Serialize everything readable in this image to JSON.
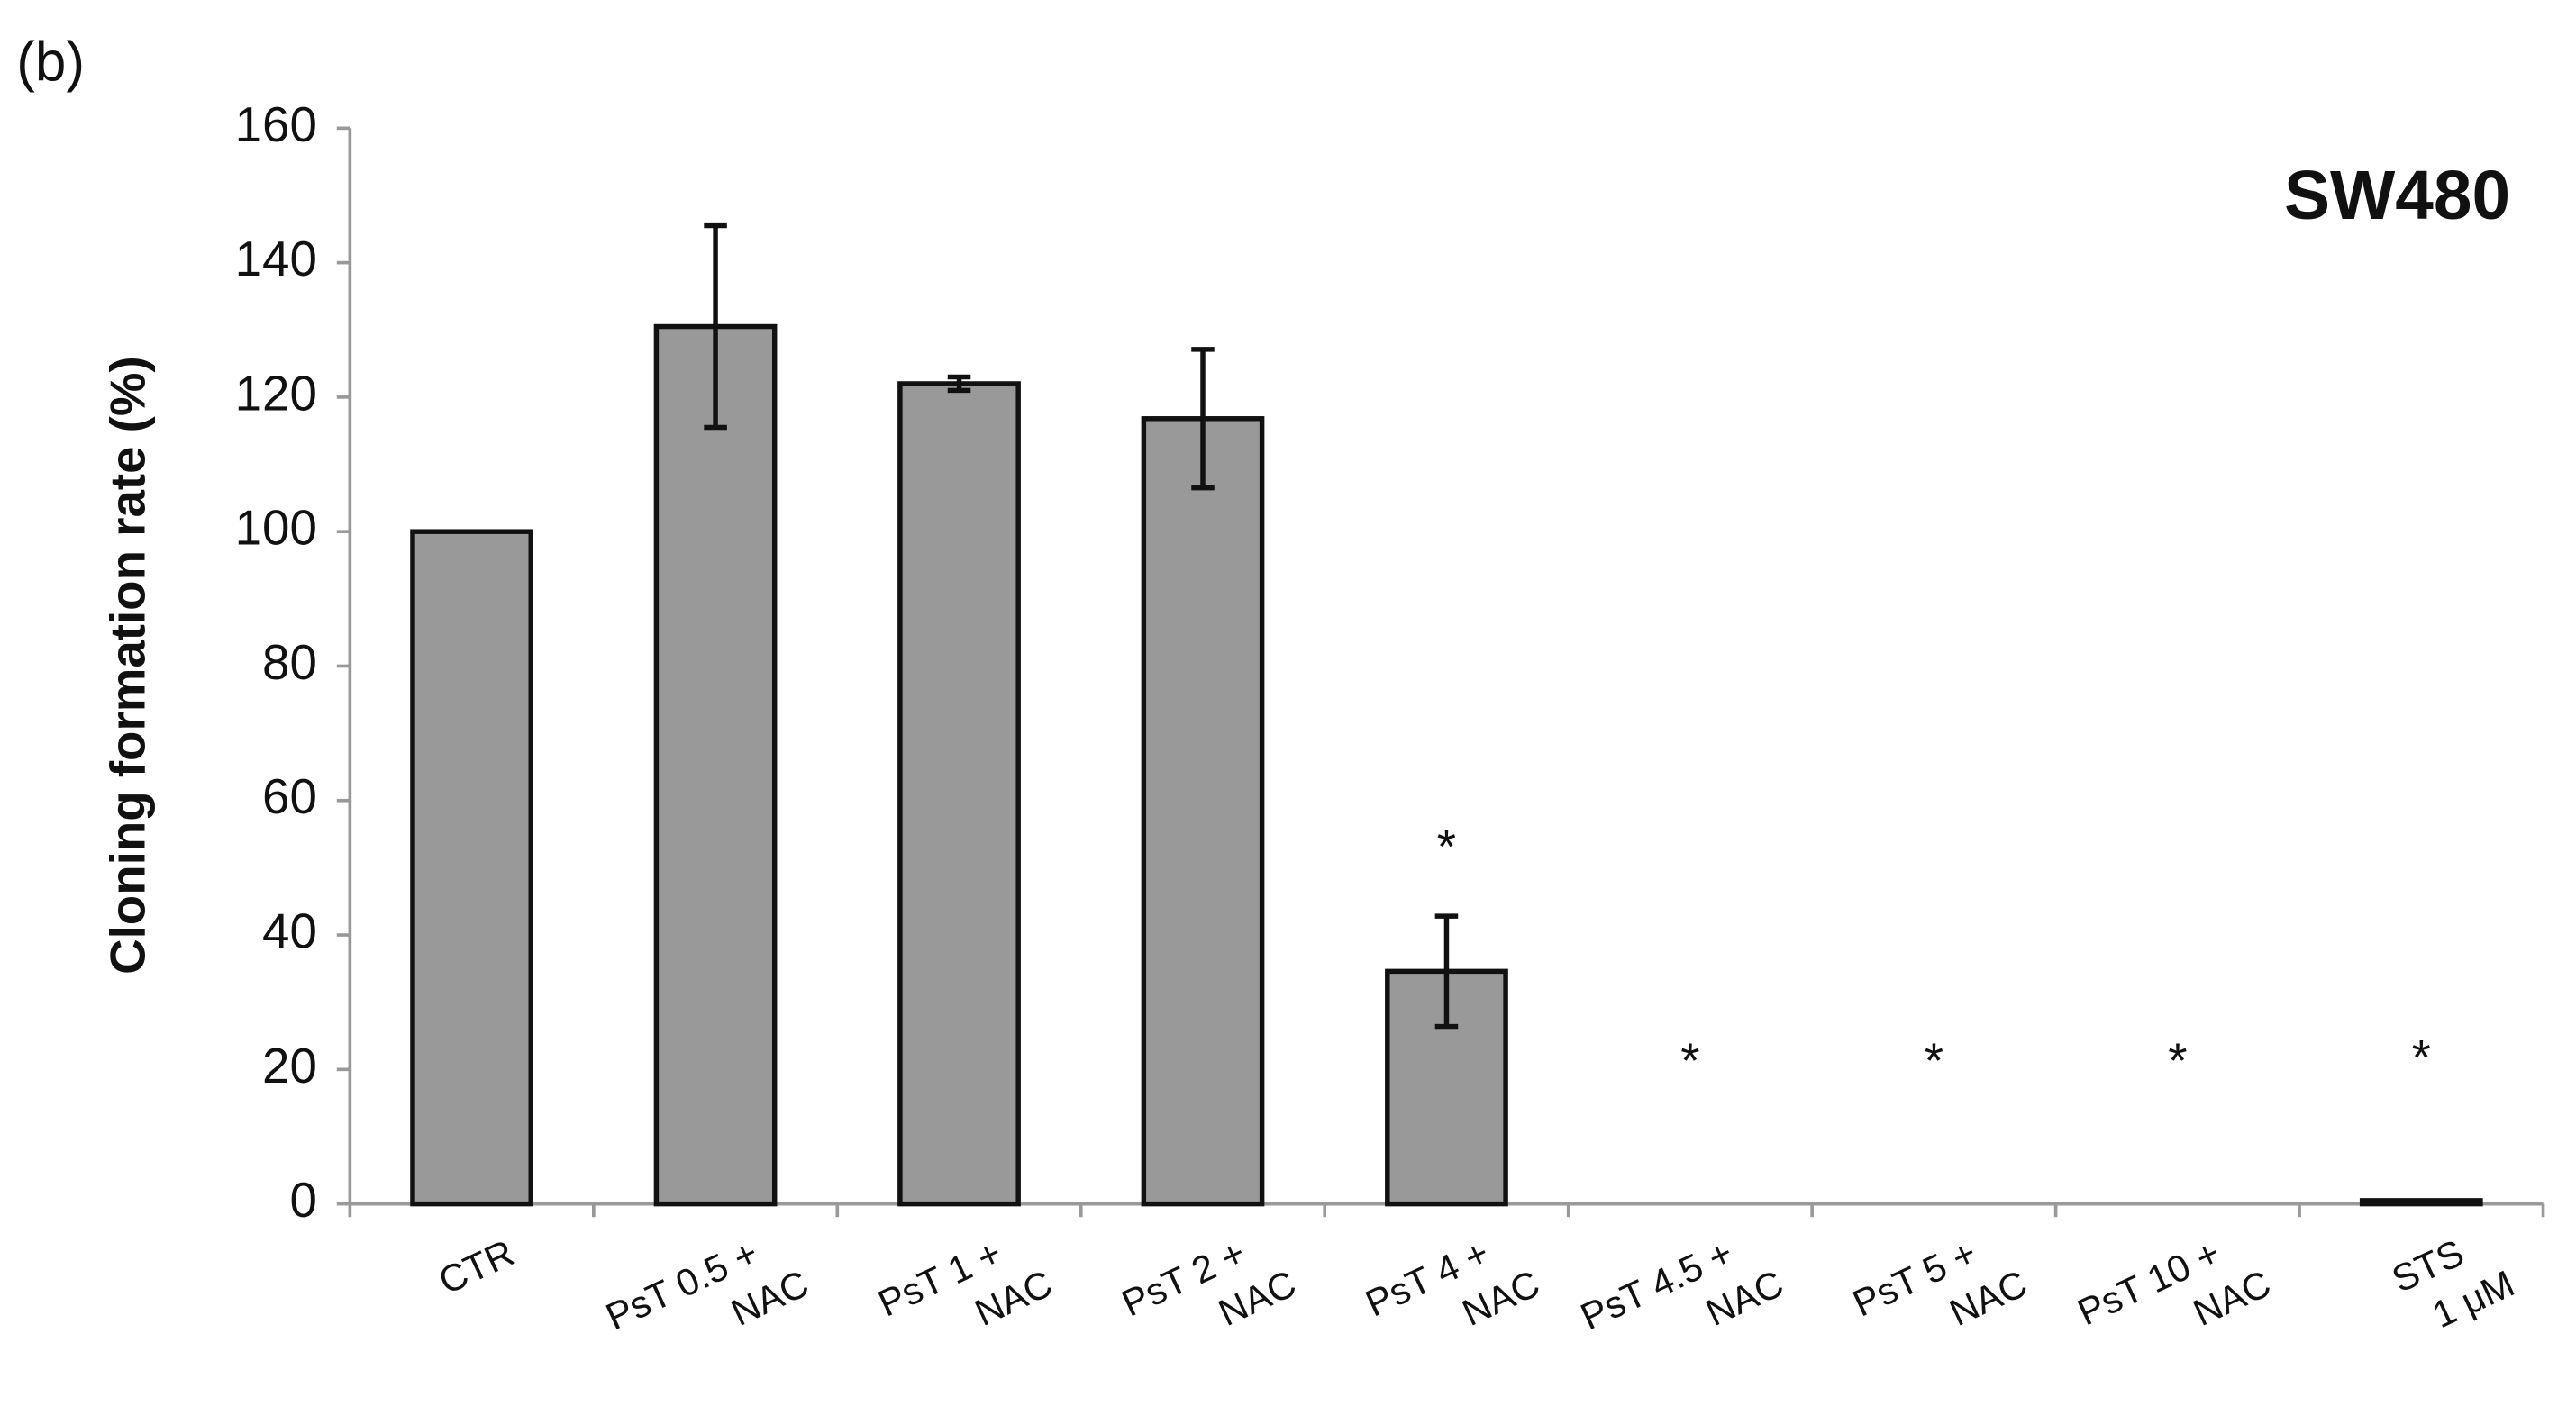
{
  "chart_data": {
    "type": "bar",
    "panel_label": "(b)",
    "annotation": "SW480",
    "y_label": "Cloning formation rate (%)",
    "categories": [
      [
        "CTR"
      ],
      [
        "PsT 0.5 +",
        "NAC"
      ],
      [
        "PsT 1 +",
        "NAC"
      ],
      [
        "PsT 2 +",
        "NAC"
      ],
      [
        "PsT 4 +",
        "NAC"
      ],
      [
        "PsT 4.5 +",
        "NAC"
      ],
      [
        "PsT 5 +",
        "NAC"
      ],
      [
        "PsT 10 +",
        "NAC"
      ],
      [
        "STS",
        "1 μM"
      ]
    ],
    "values": [
      100,
      130.5,
      122,
      116.8,
      34.6,
      0,
      0,
      0,
      0.5
    ],
    "errors": [
      null,
      15,
      1,
      10.3,
      8.2,
      null,
      null,
      null,
      null
    ],
    "significance": [
      null,
      null,
      null,
      null,
      "*",
      "*",
      "*",
      "*",
      "*"
    ],
    "color": "#999999",
    "ylim": [
      0,
      160
    ],
    "yticks": [
      0,
      20,
      40,
      60,
      80,
      100,
      120,
      140,
      160
    ]
  }
}
